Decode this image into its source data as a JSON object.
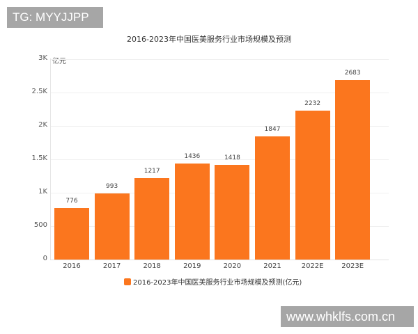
{
  "watermarks": {
    "top": "TG: MYYJJPP",
    "bottom": "www.whklfs.com.cn"
  },
  "chart_data": {
    "type": "bar",
    "title": "2016-2023年中国医美服务行业市场规模及预测",
    "xlabel": "",
    "ylabel": "亿元",
    "categories": [
      "2016",
      "2017",
      "2018",
      "2019",
      "2020",
      "2021",
      "2022E",
      "2023E"
    ],
    "series": [
      {
        "name": "2016-2023年中国医美服务行业市场规模及预测(亿元)",
        "values": [
          776,
          993,
          1217,
          1436,
          1418,
          1847,
          2232,
          2683
        ],
        "color": "#fb761e"
      }
    ],
    "ylim": [
      0,
      3000
    ],
    "yticks": [
      0,
      500,
      1000,
      1500,
      2000,
      2500,
      3000
    ],
    "ytick_labels": [
      "0",
      "500",
      "1K",
      "1.5K",
      "2K",
      "2.5K",
      "3K"
    ],
    "grid": true,
    "legend_position": "bottom",
    "data_labels": true
  }
}
